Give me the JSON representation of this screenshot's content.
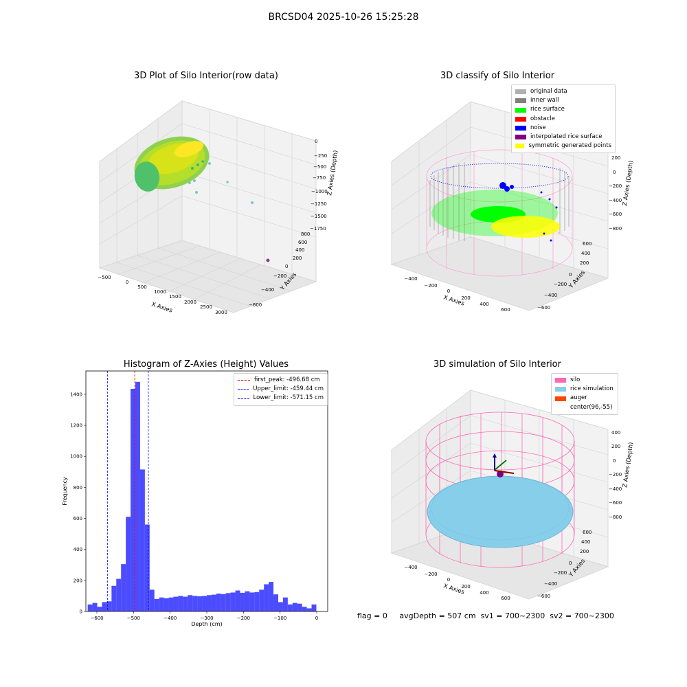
{
  "figure": {
    "suptitle": "BRCSD04 2025-10-26 15:25:28"
  },
  "panels": {
    "raw": {
      "title": "3D Plot of Silo Interior(row data)",
      "xlabel": "X Axies",
      "ylabel": "Y Axies",
      "zlabel": "Z Axies (Depth)",
      "xticks": [
        "−500",
        "0",
        "500",
        "1000",
        "1500",
        "2000",
        "2500",
        "3000"
      ],
      "yticks": [
        "−600",
        "−400",
        "−200",
        "0",
        "200",
        "400",
        "600",
        "800"
      ],
      "zticks": [
        "0",
        "−250",
        "−500",
        "−750",
        "−1000",
        "−1250",
        "−1500",
        "−1750"
      ]
    },
    "classify": {
      "title": "3D classify of Silo Interior",
      "xlabel": "X Axies",
      "ylabel": "Y Axies",
      "zlabel": "Z Axies (Depth)",
      "xticks": [
        "−400",
        "−200",
        "0",
        "200",
        "400",
        "600"
      ],
      "yticks": [
        "−600",
        "−400",
        "−200",
        "0",
        "200",
        "400",
        "600"
      ],
      "zticks": [
        "200",
        "0",
        "−200",
        "−400",
        "−600",
        "−800"
      ],
      "legend": [
        {
          "label": "original data",
          "color": "#b0b0b0"
        },
        {
          "label": "inner wall",
          "color": "#808080"
        },
        {
          "label": "rice surface",
          "color": "#00ff00"
        },
        {
          "label": "obstacle",
          "color": "#ff0000"
        },
        {
          "label": "noise",
          "color": "#0000ff"
        },
        {
          "label": "interpolated rice surface",
          "color": "#800080"
        },
        {
          "label": "symmetric generated points",
          "color": "#ffff00"
        }
      ]
    },
    "simulation": {
      "title": "3D simulation of Silo Interior",
      "xlabel": "X Axies",
      "ylabel": "Y Axies",
      "zlabel": "Z Axies (Depth)",
      "xticks": [
        "−400",
        "−200",
        "0",
        "200",
        "400",
        "600"
      ],
      "yticks": [
        "−600",
        "−400",
        "−200",
        "0",
        "200",
        "400",
        "600"
      ],
      "zticks": [
        "400",
        "200",
        "0",
        "−200",
        "−400",
        "−600",
        "−800"
      ],
      "legend": [
        {
          "label": "silo",
          "color": "#ff69b4"
        },
        {
          "label": "rice simulation",
          "color": "#87ceeb"
        },
        {
          "label": "auger",
          "color": "#ff4500"
        },
        {
          "label": "center(96,-55)",
          "color": ""
        }
      ]
    }
  },
  "chart_data": {
    "type": "bar",
    "title": "Histogram of Z-Axies (Height) Values",
    "xlabel": "Depth (cm)",
    "ylabel": "Frequency",
    "xlim": [
      -630,
      30
    ],
    "ylim": [
      0,
      1550
    ],
    "xticks": [
      -600,
      -500,
      -400,
      -300,
      -200,
      -100,
      0
    ],
    "yticks": [
      0,
      200,
      400,
      600,
      800,
      1000,
      1200,
      1400
    ],
    "bar_color": "#0000ff",
    "bin_width": 13,
    "bin_starts": [
      -625,
      -612,
      -599,
      -586,
      -573,
      -560,
      -547,
      -534,
      -521,
      -508,
      -495,
      -482,
      -469,
      -456,
      -443,
      -430,
      -417,
      -404,
      -391,
      -378,
      -365,
      -352,
      -339,
      -326,
      -313,
      -300,
      -287,
      -274,
      -261,
      -248,
      -235,
      -222,
      -209,
      -196,
      -183,
      -170,
      -157,
      -144,
      -131,
      -118,
      -105,
      -92,
      -79,
      -66,
      -53,
      -40,
      -27,
      -14,
      -1
    ],
    "frequencies": [
      45,
      55,
      30,
      60,
      65,
      165,
      210,
      305,
      610,
      1435,
      1480,
      915,
      560,
      140,
      80,
      90,
      85,
      90,
      95,
      100,
      95,
      105,
      100,
      98,
      100,
      105,
      108,
      115,
      112,
      118,
      122,
      135,
      120,
      130,
      122,
      125,
      140,
      175,
      190,
      110,
      60,
      90,
      45,
      55,
      50,
      30,
      20,
      45,
      0
    ],
    "reference_lines": [
      {
        "label": "first_peak: -496.68 cm",
        "x": -496.68,
        "color": "#ff0000"
      },
      {
        "label": "Upper_limit: -459.44 cm",
        "x": -459.44,
        "color": "#0000ff"
      },
      {
        "label": "Lower_limit: -571.15 cm",
        "x": -571.15,
        "color": "#0000ff"
      }
    ],
    "legend_position": "top-right"
  },
  "footer": {
    "flag": "flag = 0",
    "avg": "avgDepth = 507 cm",
    "sv1": "sv1 = 700~2300",
    "sv2": "sv2 = 700~2300"
  }
}
